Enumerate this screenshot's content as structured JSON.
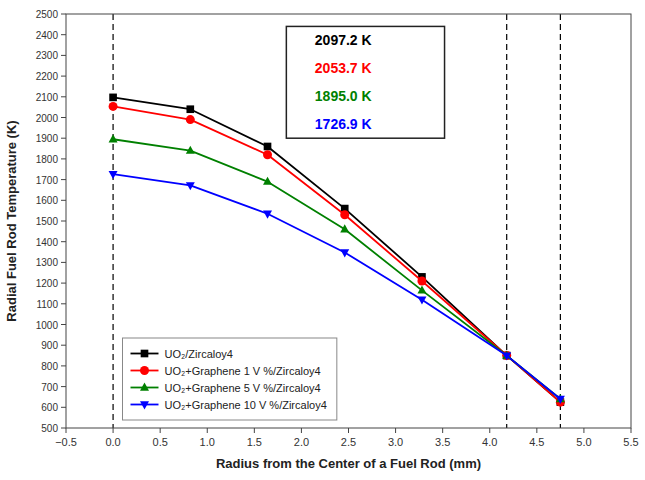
{
  "chart_data": {
    "type": "line",
    "xlabel": "Radius from the Center of a Fuel Rod (mm)",
    "ylabel": "Radial Fuel Rod Temperature (K)",
    "x": [
      0.0,
      0.82,
      1.64,
      2.46,
      3.28,
      4.18,
      4.75
    ],
    "series": [
      {
        "name": "UO₂/Zircaloy4",
        "color": "black",
        "marker": "square",
        "values": [
          2097.2,
          2040.0,
          1860.0,
          1560.0,
          1230.0,
          850.0,
          625.0
        ]
      },
      {
        "name": "UO₂+Graphene 1 V %/Zircaloy4",
        "color": "red",
        "marker": "circle",
        "values": [
          2053.7,
          1990.0,
          1820.0,
          1530.0,
          1210.0,
          850.0,
          625.0
        ]
      },
      {
        "name": "UO₂+Graphene 5 V %/Zircaloy4",
        "color": "green",
        "marker": "triangle-up",
        "values": [
          1895.0,
          1840.0,
          1690.0,
          1460.0,
          1165.0,
          850.0,
          640.0
        ]
      },
      {
        "name": "UO₂+Graphene 10 V %/Zircaloy4",
        "color": "blue",
        "marker": "triangle-down",
        "values": [
          1726.9,
          1672.0,
          1535.0,
          1348.0,
          1120.0,
          850.0,
          640.0
        ]
      }
    ],
    "vlines": [
      0.0,
      4.18,
      4.75
    ],
    "annotations": [
      {
        "text": "2097.2 K",
        "color": "black"
      },
      {
        "text": "2053.7 K",
        "color": "red"
      },
      {
        "text": "1895.0 K",
        "color": "green"
      },
      {
        "text": "1726.9 K",
        "color": "blue"
      }
    ],
    "xlim": [
      -0.5,
      5.5
    ],
    "ylim": [
      500,
      2500
    ],
    "xticks": [
      {
        "value": -0.5,
        "label": "−0.5"
      },
      {
        "value": 0,
        "label": "0.0"
      },
      0.5,
      {
        "value": 1,
        "label": "1.0"
      },
      1.5,
      {
        "value": 2,
        "label": "2.0"
      },
      2.5,
      {
        "value": 3,
        "label": "3.0"
      },
      3.5,
      {
        "value": 4,
        "label": "4.0"
      },
      4.5,
      {
        "value": 5,
        "label": "5.0"
      },
      5.5
    ],
    "yticks": [
      500,
      600,
      700,
      800,
      900,
      1000,
      1100,
      1200,
      1300,
      1400,
      1500,
      1600,
      1700,
      1800,
      1900,
      2000,
      2100,
      2200,
      2300,
      2400,
      2500
    ],
    "grid": false,
    "legend": "lower left"
  }
}
